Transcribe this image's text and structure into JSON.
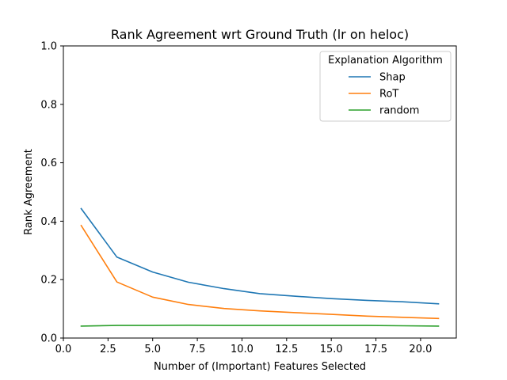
{
  "chart_data": {
    "type": "line",
    "title": "Rank Agreement wrt Ground Truth (lr on heloc)",
    "xlabel": "Number of (Important) Features Selected",
    "ylabel": "Rank Agreement",
    "xlim": [
      0.0,
      22.0
    ],
    "ylim": [
      0.0,
      1.0
    ],
    "xticks": [
      "0.0",
      "2.5",
      "5.0",
      "7.5",
      "10.0",
      "12.5",
      "15.0",
      "17.5",
      "20.0"
    ],
    "yticks": [
      "0.0",
      "0.2",
      "0.4",
      "0.6",
      "0.8",
      "1.0"
    ],
    "grid": false,
    "legend": {
      "title": "Explanation Algorithm",
      "placement": "top-right"
    },
    "x": [
      1,
      3,
      5,
      7,
      9,
      11,
      13,
      15,
      17,
      19,
      21
    ],
    "series": [
      {
        "name": "Shap",
        "color": "#1f77b4",
        "values": [
          0.443,
          0.277,
          0.226,
          0.191,
          0.169,
          0.152,
          0.143,
          0.135,
          0.129,
          0.124,
          0.117
        ]
      },
      {
        "name": "RoT",
        "color": "#ff7f0e",
        "values": [
          0.385,
          0.192,
          0.14,
          0.115,
          0.101,
          0.093,
          0.087,
          0.081,
          0.075,
          0.071,
          0.067
        ]
      },
      {
        "name": "random",
        "color": "#2ca02c",
        "values": [
          0.041,
          0.043,
          0.043,
          0.044,
          0.043,
          0.043,
          0.043,
          0.043,
          0.043,
          0.042,
          0.041
        ]
      }
    ]
  }
}
